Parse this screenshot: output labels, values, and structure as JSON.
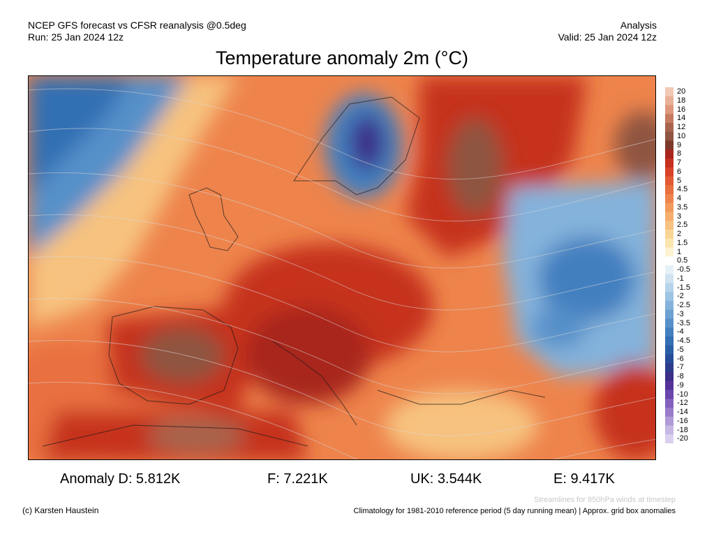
{
  "header": {
    "left_line1": "NCEP GFS forecast vs CFSR reanalysis @0.5deg",
    "left_line2": "Run: 25 Jan 2024 12z",
    "right_line1": "Analysis",
    "right_line2": "Valid: 25 Jan 2024 12z"
  },
  "title": "Temperature anomaly 2m (°C)",
  "colorbar": {
    "labels": [
      "20",
      "18",
      "16",
      "14",
      "12",
      "10",
      "9",
      "8",
      "7",
      "6",
      "5",
      "4.5",
      "4",
      "3.5",
      "3",
      "2.5",
      "2",
      "1.5",
      "1",
      "0.5",
      "-0.5",
      "-1",
      "-1.5",
      "-2",
      "-2.5",
      "-3",
      "-3.5",
      "-4",
      "-4.5",
      "-5",
      "-6",
      "-7",
      "-8",
      "-9",
      "-10",
      "-12",
      "-14",
      "-16",
      "-18",
      "-20"
    ],
    "colors": [
      "#f2c9b4",
      "#e9b098",
      "#df987d",
      "#c77c61",
      "#a8654d",
      "#8e5540",
      "#7d3a2a",
      "#a8261c",
      "#c6301f",
      "#d9422a",
      "#e35a34",
      "#e96f3f",
      "#ee844c",
      "#f29a5c",
      "#f5ae6d",
      "#f7c27f",
      "#f9d595",
      "#fbe6b0",
      "#fdf3d3",
      "#ffffff",
      "#e6f0f7",
      "#cfe2f0",
      "#b6d3ea",
      "#9dc3e3",
      "#84b2db",
      "#6ca1d2",
      "#5790c9",
      "#437fbf",
      "#336fb4",
      "#2a5ea7",
      "#264c98",
      "#2d3c8a",
      "#3d2f87",
      "#55329a",
      "#6c45ad",
      "#8360bd",
      "#9a7ccb",
      "#b19ad8",
      "#c6b7e4",
      "#d9d0ee"
    ]
  },
  "stats": {
    "d": "Anomaly D: 5.812K",
    "f": "F: 7.221K",
    "uk": "UK: 3.544K",
    "e": "E: 9.417K"
  },
  "footer": {
    "credit": "(c) Karsten Haustein",
    "streamlines_note": "Streamlines for 850hPa winds at timestep",
    "climatology": "Climatology for 1981-2010 reference period (5 day running mean) | Approx. grid box anomalies"
  }
}
